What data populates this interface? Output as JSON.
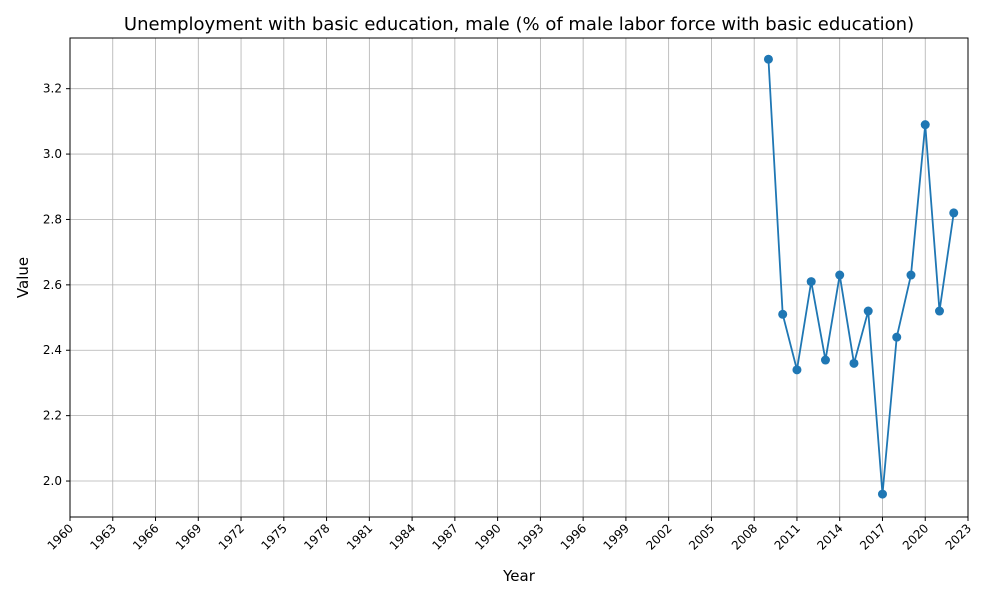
{
  "chart_data": {
    "type": "line",
    "title": "Unemployment with basic education, male (% of male labor force with basic education)",
    "xlabel": "Year",
    "ylabel": "Value",
    "xlim": [
      1960,
      2023
    ],
    "ylim": [
      1.89,
      3.355
    ],
    "x_ticks": [
      "1960",
      "1963",
      "1966",
      "1969",
      "1972",
      "1975",
      "1978",
      "1981",
      "1984",
      "1987",
      "1990",
      "1993",
      "1996",
      "1999",
      "2002",
      "2005",
      "2008",
      "2011",
      "2014",
      "2017",
      "2020",
      "2023"
    ],
    "y_ticks": [
      "2.0",
      "2.2",
      "2.4",
      "2.6",
      "2.8",
      "3.0",
      "3.2"
    ],
    "grid": true,
    "series": [
      {
        "color": "#1f77b4",
        "marker": "circle",
        "x": [
          2009,
          2010,
          2011,
          2012,
          2013,
          2014,
          2015,
          2016,
          2017,
          2018,
          2019,
          2020,
          2021,
          2022
        ],
        "y": [
          3.29,
          2.51,
          2.34,
          2.61,
          2.37,
          2.63,
          2.36,
          2.52,
          1.96,
          2.44,
          2.63,
          3.09,
          2.52,
          2.82
        ]
      }
    ]
  }
}
